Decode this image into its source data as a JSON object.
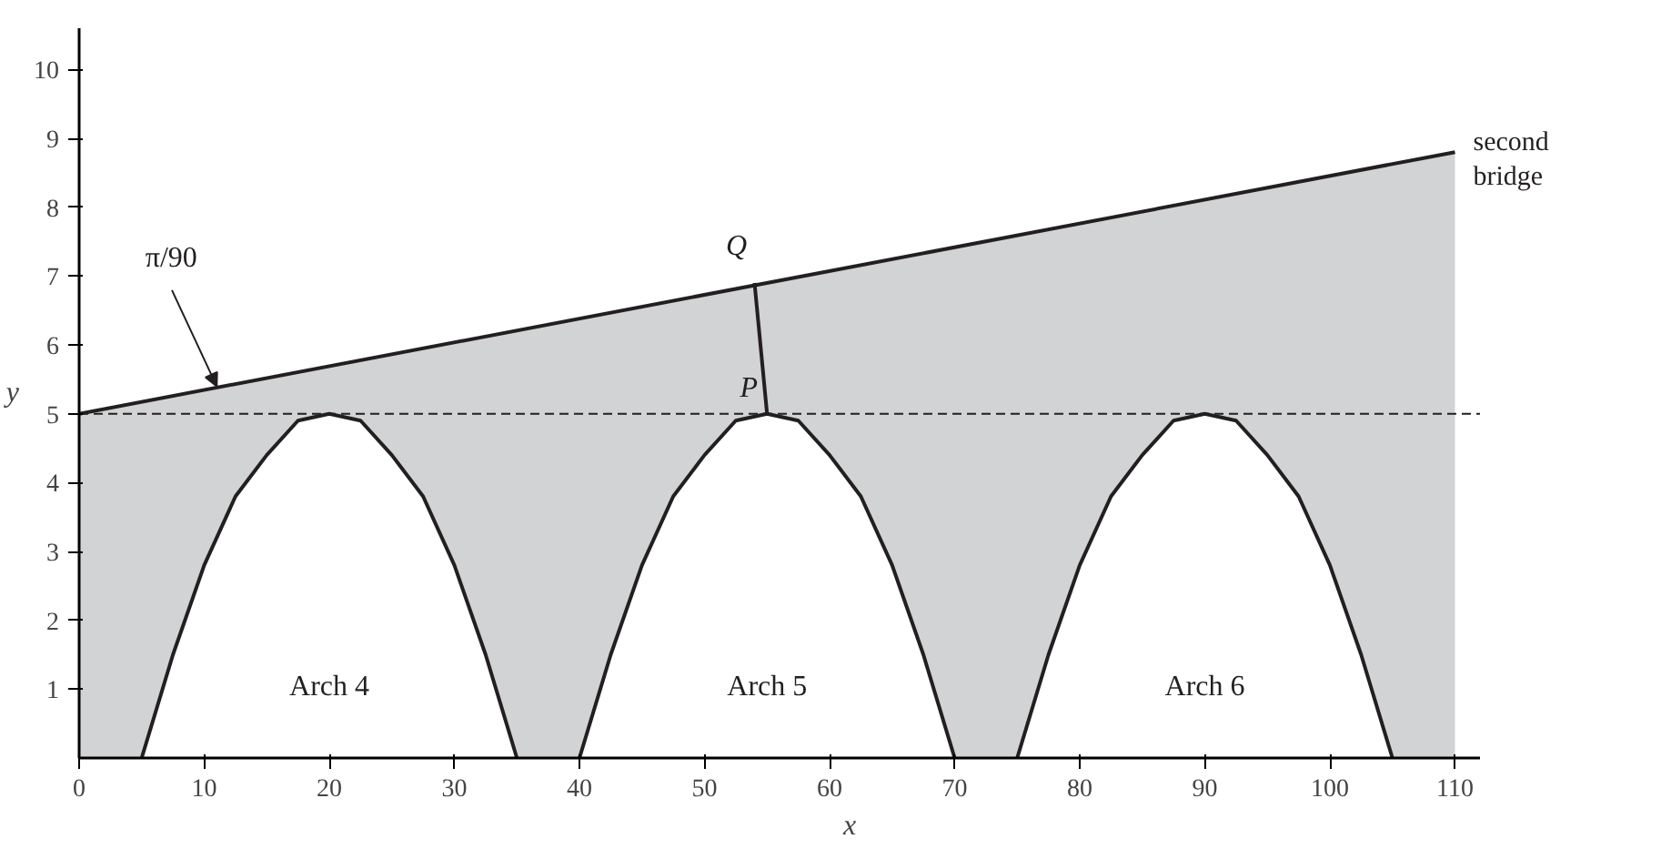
{
  "chart_data": {
    "type": "line",
    "xlabel": "x",
    "ylabel": "y",
    "xlim": [
      0,
      112
    ],
    "ylim": [
      0,
      10.6
    ],
    "xticks": [
      0,
      10,
      20,
      30,
      40,
      50,
      60,
      70,
      80,
      90,
      100,
      110
    ],
    "yticks": [
      1,
      2,
      3,
      4,
      5,
      6,
      7,
      8,
      9,
      10
    ],
    "grid": false,
    "series": [
      {
        "type": "area",
        "name": "second bridge",
        "color": "#d1d3d4",
        "x": [
          0,
          110
        ],
        "values": [
          5,
          8.8
        ]
      },
      {
        "color": "#231f20",
        "x": [
          5,
          7.5,
          10,
          12.5,
          15,
          17.5,
          20,
          22.5,
          25,
          27.5,
          30,
          32.5,
          35
        ],
        "values": [
          0,
          1.5,
          2.8,
          3.8,
          4.4,
          4.9,
          5,
          4.9,
          4.4,
          3.8,
          2.8,
          1.5,
          0
        ]
      },
      {
        "color": "#231f20",
        "x": [
          40,
          42.5,
          45,
          47.5,
          50,
          52.5,
          55,
          57.5,
          60,
          62.5,
          65,
          67.5,
          70
        ],
        "values": [
          0,
          1.5,
          2.8,
          3.8,
          4.4,
          4.9,
          5,
          4.9,
          4.4,
          3.8,
          2.8,
          1.5,
          0
        ]
      },
      {
        "color": "#231f20",
        "x": [
          75,
          77.5,
          80,
          82.5,
          85,
          87.5,
          90,
          92.5,
          95,
          97.5,
          100,
          102.5,
          105
        ],
        "values": [
          0,
          1.5,
          2.8,
          3.8,
          4.4,
          4.9,
          5,
          4.9,
          4.4,
          3.8,
          2.8,
          1.5,
          0
        ]
      },
      {
        "color": "#231f20",
        "x": [
          55,
          54
        ],
        "values": [
          5,
          6.9
        ]
      }
    ],
    "ref_lines": [
      {
        "axis": "y",
        "value": 5,
        "color": "#231f20",
        "line_style": "dashed"
      }
    ],
    "annotations": [
      {
        "text": "π/90",
        "x": 11,
        "y": 5.4
      },
      "Q",
      "P",
      "Arch 4",
      "Arch 5",
      "Arch 6"
    ]
  }
}
